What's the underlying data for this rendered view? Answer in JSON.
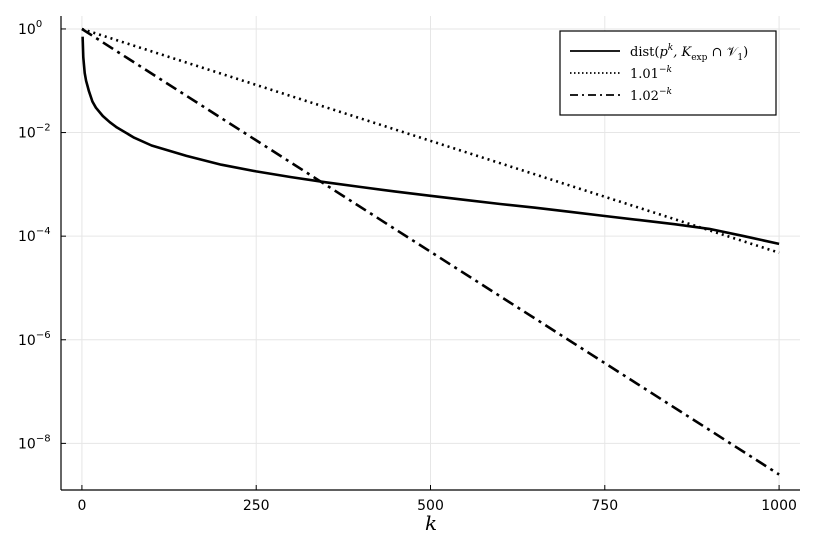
{
  "chart_data": {
    "type": "line",
    "title": "",
    "xlabel": "k",
    "ylabel": "",
    "xlim": [
      -30,
      1030
    ],
    "ylim_log10": [
      -8.9,
      0.25
    ],
    "y_scale": "log10",
    "grid": true,
    "legend_position": "top-right",
    "x_ticks": [
      {
        "value": 0,
        "label": "0"
      },
      {
        "value": 250,
        "label": "250"
      },
      {
        "value": 500,
        "label": "500"
      },
      {
        "value": 750,
        "label": "750"
      },
      {
        "value": 1000,
        "label": "1000"
      }
    ],
    "y_ticks": [
      {
        "value": 0,
        "base": "10",
        "exp": "0"
      },
      {
        "value": -2,
        "base": "10",
        "exp": "−2"
      },
      {
        "value": -4,
        "base": "10",
        "exp": "−4"
      },
      {
        "value": -6,
        "base": "10",
        "exp": "−6"
      },
      {
        "value": -8,
        "base": "10",
        "exp": "−8"
      }
    ],
    "series": [
      {
        "name_parts": [
          "dist(",
          "p",
          "k",
          ", K",
          "exp",
          " ∩ 𝒱",
          "1",
          ")"
        ],
        "style": "solid",
        "color": "#000000",
        "x": [
          1,
          2,
          4,
          6,
          8,
          10,
          15,
          20,
          30,
          40,
          50,
          75,
          100,
          150,
          200,
          250,
          300,
          350,
          400,
          450,
          500,
          550,
          600,
          650,
          700,
          750,
          800,
          850,
          900,
          950,
          1000
        ],
        "log10": [
          -0.15,
          -0.55,
          -0.85,
          -1.0,
          -1.1,
          -1.2,
          -1.4,
          -1.52,
          -1.68,
          -1.8,
          -1.9,
          -2.1,
          -2.25,
          -2.45,
          -2.62,
          -2.75,
          -2.86,
          -2.96,
          -3.05,
          -3.14,
          -3.22,
          -3.3,
          -3.38,
          -3.45,
          -3.53,
          -3.61,
          -3.69,
          -3.77,
          -3.86,
          -4.0,
          -4.15
        ]
      },
      {
        "name_parts": [
          "1.01",
          "−k"
        ],
        "style": "dotted",
        "color": "#000000",
        "x": [
          0,
          1000
        ],
        "log10": [
          0,
          -4.32
        ]
      },
      {
        "name_parts": [
          "1.02",
          "−k"
        ],
        "style": "dashdot",
        "color": "#000000",
        "x": [
          0,
          1000
        ],
        "log10": [
          0,
          -8.6
        ]
      }
    ]
  }
}
